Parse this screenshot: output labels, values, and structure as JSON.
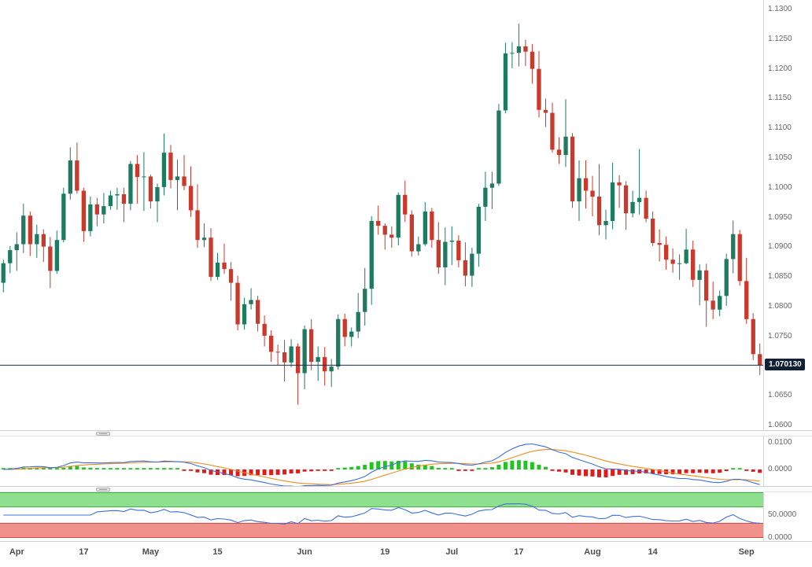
{
  "chart_data": {
    "type": "candlestick",
    "title": "",
    "current_price": 1.07013,
    "current_price_label": "1.070130",
    "price_axis": {
      "min": 1.06,
      "max": 1.13,
      "tick_labels": [
        "1.1300",
        "1.1250",
        "1.1200",
        "1.1150",
        "1.1100",
        "1.1050",
        "1.1000",
        "1.0950",
        "1.0900",
        "1.0850",
        "1.0800",
        "1.0750",
        "1.0650",
        "1.0600"
      ]
    },
    "x_ticks": [
      {
        "index": 2,
        "label": "Apr"
      },
      {
        "index": 12,
        "label": "17"
      },
      {
        "index": 22,
        "label": "May"
      },
      {
        "index": 32,
        "label": "15"
      },
      {
        "index": 45,
        "label": "Jun"
      },
      {
        "index": 57,
        "label": "19"
      },
      {
        "index": 67,
        "label": "Jul"
      },
      {
        "index": 77,
        "label": "17"
      },
      {
        "index": 88,
        "label": "Aug"
      },
      {
        "index": 97,
        "label": "14"
      },
      {
        "index": 111,
        "label": "Sep"
      }
    ],
    "candles": [
      [
        1.084,
        1.0879,
        1.0824,
        1.0873
      ],
      [
        1.0873,
        1.0902,
        1.0856,
        1.0895
      ],
      [
        1.0895,
        1.0925,
        1.086,
        1.0905
      ],
      [
        1.0905,
        1.0973,
        1.089,
        1.0953
      ],
      [
        1.0953,
        1.096,
        1.0885,
        1.0905
      ],
      [
        1.0905,
        1.0938,
        1.0882,
        1.0922
      ],
      [
        1.0922,
        1.093,
        1.0875,
        1.0901
      ],
      [
        1.0901,
        1.0917,
        1.0831,
        1.086
      ],
      [
        1.086,
        1.0928,
        1.0855,
        1.0912
      ],
      [
        1.0912,
        1.1,
        1.0908,
        1.099
      ],
      [
        1.099,
        1.1068,
        1.098,
        1.1046
      ],
      [
        1.1046,
        1.1076,
        1.099,
        1.0995
      ],
      [
        1.0995,
        1.1,
        1.0909,
        1.0927
      ],
      [
        1.0927,
        1.0985,
        1.0918,
        1.0972
      ],
      [
        1.0972,
        1.0983,
        1.0935,
        1.0955
      ],
      [
        1.0955,
        1.0991,
        1.094,
        1.0969
      ],
      [
        1.0969,
        1.0995,
        1.0963,
        1.0987
      ],
      [
        1.0987,
        1.1,
        1.0963,
        1.0989
      ],
      [
        1.0989,
        1.1,
        1.0942,
        1.0973
      ],
      [
        1.0973,
        1.1045,
        1.0962,
        1.104
      ],
      [
        1.104,
        1.1055,
        1.0973,
        1.1018
      ],
      [
        1.1018,
        1.106,
        1.0961,
        1.1019
      ],
      [
        1.1019,
        1.1022,
        1.0965,
        1.0977
      ],
      [
        1.0977,
        1.1007,
        1.0942,
        1.1001
      ],
      [
        1.1001,
        1.1091,
        1.0987,
        1.1059
      ],
      [
        1.1059,
        1.1072,
        1.0999,
        1.1013
      ],
      [
        1.1013,
        1.1047,
        1.0962,
        1.1019
      ],
      [
        1.1019,
        1.1055,
        1.0996,
        1.1003
      ],
      [
        1.1003,
        1.1036,
        1.0951,
        1.0962
      ],
      [
        1.0962,
        1.1006,
        1.0899,
        1.0912
      ],
      [
        1.0912,
        1.094,
        1.09,
        1.0916
      ],
      [
        1.0916,
        1.0932,
        1.0843,
        1.085
      ],
      [
        1.085,
        1.089,
        1.0845,
        1.0874
      ],
      [
        1.0874,
        1.0906,
        1.0855,
        1.0863
      ],
      [
        1.0863,
        1.0875,
        1.081,
        1.084
      ],
      [
        1.084,
        1.0852,
        1.076,
        1.077
      ],
      [
        1.077,
        1.0815,
        1.0761,
        1.0804
      ],
      [
        1.0804,
        1.0831,
        1.0795,
        1.0811
      ],
      [
        1.0811,
        1.0818,
        1.0758,
        1.0771
      ],
      [
        1.0771,
        1.0785,
        1.0733,
        1.0751
      ],
      [
        1.0751,
        1.076,
        1.0707,
        1.0724
      ],
      [
        1.0724,
        1.0736,
        1.0701,
        1.0723
      ],
      [
        1.0723,
        1.0744,
        1.0674,
        1.0706
      ],
      [
        1.0706,
        1.0745,
        1.0698,
        1.0733
      ],
      [
        1.0733,
        1.0738,
        1.0635,
        1.0688
      ],
      [
        1.0688,
        1.0768,
        1.0661,
        1.0762
      ],
      [
        1.0762,
        1.0779,
        1.0693,
        1.0707
      ],
      [
        1.0707,
        1.0733,
        1.0675,
        1.0715
      ],
      [
        1.0715,
        1.0732,
        1.0667,
        1.0691
      ],
      [
        1.0691,
        1.0712,
        1.0665,
        1.0699
      ],
      [
        1.0699,
        1.0787,
        1.0694,
        1.0779
      ],
      [
        1.0779,
        1.0788,
        1.0733,
        1.0749
      ],
      [
        1.0749,
        1.0765,
        1.0733,
        1.0758
      ],
      [
        1.0758,
        1.0823,
        1.0747,
        1.0791
      ],
      [
        1.0791,
        1.0865,
        1.0768,
        1.083
      ],
      [
        1.083,
        1.0952,
        1.0803,
        1.0944
      ],
      [
        1.0944,
        1.097,
        1.0921,
        1.0936
      ],
      [
        1.0936,
        1.094,
        1.0896,
        1.0921
      ],
      [
        1.0921,
        1.0935,
        1.0899,
        1.0916
      ],
      [
        1.0916,
        1.0992,
        1.0903,
        1.0988
      ],
      [
        1.0988,
        1.1012,
        1.0942,
        1.0955
      ],
      [
        1.0955,
        1.0962,
        1.0884,
        1.0893
      ],
      [
        1.0893,
        1.0918,
        1.0886,
        1.0905
      ],
      [
        1.0905,
        1.0976,
        1.0902,
        1.096
      ],
      [
        1.096,
        1.0966,
        1.0899,
        1.0912
      ],
      [
        1.0912,
        1.0942,
        1.0855,
        1.0866
      ],
      [
        1.0866,
        1.0933,
        1.0836,
        1.0909
      ],
      [
        1.0909,
        1.0935,
        1.087,
        1.0911
      ],
      [
        1.0911,
        1.092,
        1.0866,
        1.0878
      ],
      [
        1.0878,
        1.0908,
        1.0834,
        1.0852
      ],
      [
        1.0852,
        1.0899,
        1.0833,
        1.0889
      ],
      [
        1.0889,
        1.0973,
        1.0867,
        1.0968
      ],
      [
        1.0968,
        1.1027,
        1.0944,
        1.1
      ],
      [
        1.1,
        1.1027,
        1.0964,
        1.1007
      ],
      [
        1.1007,
        1.1141,
        1.1003,
        1.113
      ],
      [
        1.113,
        1.1244,
        1.1125,
        1.1226
      ],
      [
        1.1226,
        1.1245,
        1.1201,
        1.1227
      ],
      [
        1.1227,
        1.1276,
        1.1204,
        1.1238
      ],
      [
        1.1238,
        1.1249,
        1.1205,
        1.1229
      ],
      [
        1.1229,
        1.1242,
        1.1175,
        1.12
      ],
      [
        1.12,
        1.123,
        1.1118,
        1.1131
      ],
      [
        1.1131,
        1.115,
        1.1102,
        1.1126
      ],
      [
        1.1126,
        1.1143,
        1.1059,
        1.1064
      ],
      [
        1.1064,
        1.1085,
        1.104,
        1.1055
      ],
      [
        1.1055,
        1.1149,
        1.1035,
        1.1086
      ],
      [
        1.1086,
        1.1092,
        1.0966,
        1.0977
      ],
      [
        1.0977,
        1.1046,
        1.0944,
        1.1016
      ],
      [
        1.1016,
        1.1046,
        1.0965,
        1.0995
      ],
      [
        1.0995,
        1.102,
        1.0952,
        1.0985
      ],
      [
        1.0985,
        1.104,
        1.092,
        1.0937
      ],
      [
        1.0937,
        1.0963,
        1.0913,
        1.0944
      ],
      [
        1.0944,
        1.1042,
        1.093,
        1.1009
      ],
      [
        1.1009,
        1.1021,
        1.0966,
        1.1004
      ],
      [
        1.1004,
        1.1011,
        1.0929,
        1.0957
      ],
      [
        1.0957,
        1.0995,
        1.095,
        1.0976
      ],
      [
        1.0976,
        1.1065,
        1.0955,
        1.0983
      ],
      [
        1.0983,
        1.0995,
        1.0942,
        1.0948
      ],
      [
        1.0948,
        1.096,
        1.0902,
        1.0907
      ],
      [
        1.0907,
        1.093,
        1.0876,
        1.0904
      ],
      [
        1.0904,
        1.0918,
        1.0862,
        1.0879
      ],
      [
        1.0879,
        1.0898,
        1.0857,
        1.0872
      ],
      [
        1.0872,
        1.0888,
        1.0845,
        1.0873
      ],
      [
        1.0873,
        1.0931,
        1.0871,
        1.0896
      ],
      [
        1.0896,
        1.0911,
        1.0833,
        1.0845
      ],
      [
        1.0845,
        1.0871,
        1.0802,
        1.0861
      ],
      [
        1.0861,
        1.0872,
        1.0766,
        1.081
      ],
      [
        1.081,
        1.0842,
        1.0779,
        1.0795
      ],
      [
        1.0795,
        1.0827,
        1.0784,
        1.0818
      ],
      [
        1.0818,
        1.0889,
        1.0801,
        1.088
      ],
      [
        1.088,
        1.0945,
        1.0856,
        1.0922
      ],
      [
        1.0922,
        1.0929,
        1.0835,
        1.0843
      ],
      [
        1.0843,
        1.0882,
        1.0771,
        1.0779
      ],
      [
        1.0779,
        1.0789,
        1.071,
        1.072
      ],
      [
        1.072,
        1.0738,
        1.0685,
        1.0701
      ]
    ],
    "indicators": {
      "macd": {
        "fast": 12,
        "slow": 26,
        "signal": 9,
        "axis_ticks": [
          {
            "label": "0.0100",
            "value": 0.01
          },
          {
            "label": "0.0000",
            "value": 0
          }
        ]
      },
      "rsi": {
        "period": 14,
        "overbought": 68,
        "oversold": 32,
        "axis_ticks": [
          {
            "label": "50.0000",
            "value": 50
          },
          {
            "label": "0.0000",
            "value": 0
          }
        ]
      }
    },
    "colors": {
      "up": "#1e7b60",
      "down": "#c9392c",
      "macd_line": "#3d6fd8",
      "signal_line": "#f08c1e",
      "hist_up": "#21c421",
      "hist_down": "#e31a1a",
      "rsi_line": "#3d6fd8",
      "overbought_band": "#8ee08e",
      "oversold_band": "#f0918c",
      "band_green_edge": "#45a845",
      "band_red_edge": "#cc4b44",
      "price_line": "#1c2f52",
      "badge_bg": "#101f38",
      "badge_text": "#ffffff"
    }
  }
}
